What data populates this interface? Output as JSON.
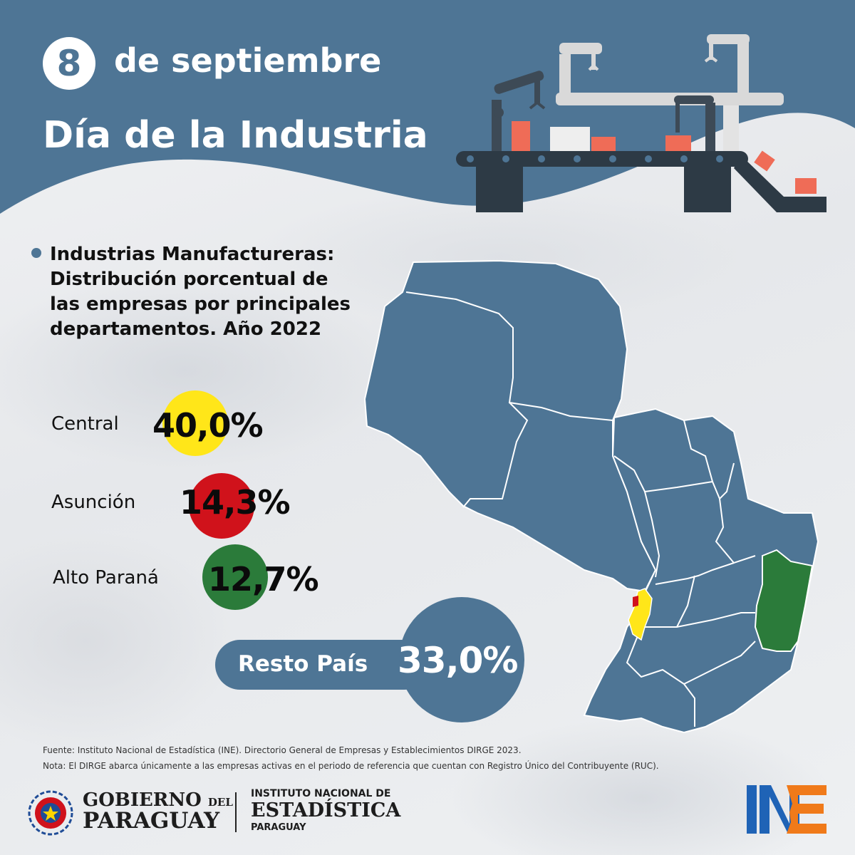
{
  "header": {
    "day_number": "8",
    "date_text": "de septiembre",
    "title": "Día de la Industria"
  },
  "colors": {
    "header_blue": "#4e7595",
    "map_blue": "#4e7595",
    "central_yellow": "#ffe619",
    "asuncion_red": "#d0121b",
    "alto_parana_green": "#2b7b3a",
    "ine_blue": "#1f63b6",
    "ine_orange": "#f07a1a"
  },
  "subtitle": {
    "lines": [
      "Industrias Manufactureras:",
      "Distribución porcentual de",
      "las empresas por principales",
      "departamentos. Año 2022"
    ]
  },
  "stats": [
    {
      "label": "Central",
      "value": "40,0%",
      "color_name": "yellow"
    },
    {
      "label": "Asunción",
      "value": "14,3%",
      "color_name": "red"
    },
    {
      "label": "Alto Paraná",
      "value": "12,7%",
      "color_name": "green"
    }
  ],
  "resto": {
    "label": "Resto País",
    "value": "33,0%"
  },
  "notes": {
    "source": "Fuente: Instituto Nacional de Estadística (INE). Directorio General de Empresas y Establecimientos DIRGE 2023.",
    "note": "Nota: El DIRGE abarca únicamente a las empresas activas en el periodo de referencia que cuentan con Registro Único del Contribuyente (RUC)."
  },
  "footer": {
    "gobierno_line1": "GOBIERNO",
    "gobierno_del": "DEL",
    "gobierno_line2": "PARAGUAY",
    "ine_line1": "INSTITUTO NACIONAL DE",
    "ine_line2": "ESTADÍSTICA",
    "ine_line3": "PARAGUAY"
  },
  "icons": [
    "factory-illustration",
    "paraguay-map",
    "gobierno-emblem",
    "ine-logo"
  ]
}
